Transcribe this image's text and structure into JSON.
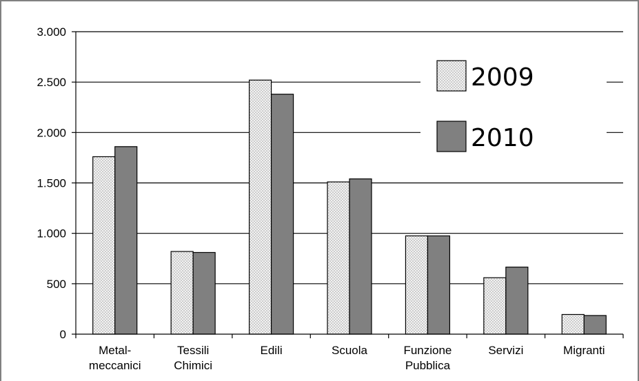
{
  "chart_data": {
    "type": "bar",
    "categories": [
      [
        "Metal-",
        "meccanici"
      ],
      [
        "Tessili",
        "Chimici"
      ],
      [
        "Edili"
      ],
      [
        "Scuola"
      ],
      [
        "Funzione",
        "Pubblica"
      ],
      [
        "Servizi"
      ],
      [
        "Migranti"
      ]
    ],
    "series": [
      {
        "name": "2009",
        "values": [
          1760,
          820,
          2520,
          1510,
          975,
          560,
          195
        ]
      },
      {
        "name": "2010",
        "values": [
          1860,
          810,
          2380,
          1540,
          975,
          665,
          185
        ]
      }
    ],
    "ylim": [
      0,
      3000
    ],
    "yticks": [
      0,
      500,
      1000,
      1500,
      2000,
      2500,
      3000
    ],
    "ytick_labels": [
      "0",
      "500",
      "1.000",
      "1.500",
      "2.000",
      "2.500",
      "3.000"
    ],
    "grid": true,
    "legend_position": "top-right",
    "title": "",
    "xlabel": "",
    "ylabel": ""
  },
  "colors": {
    "series_2009": "#e4e4e4",
    "series_2010": "#808080",
    "grid": "#000000",
    "frame": "#808080"
  }
}
